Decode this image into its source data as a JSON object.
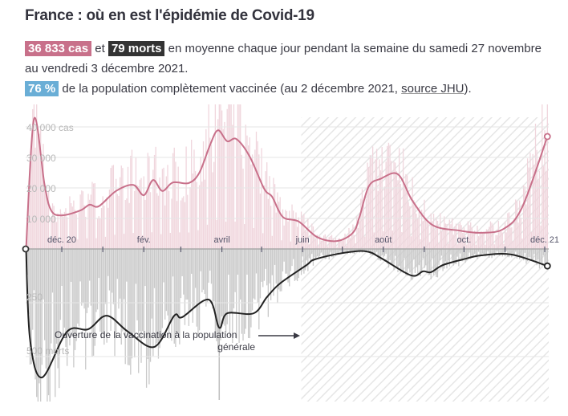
{
  "title": "France : où en est l'épidémie de Covid-19",
  "summary": {
    "cases_badge": "36 833 cas",
    "and": "et",
    "deaths_badge": "79 morts",
    "text1": "en moyenne chaque jour pendant la semaine du samedi 27 novembre au vendredi 3 décembre 2021.",
    "vax_badge": "76 %",
    "text2": "de la population complètement vaccinée (au 2 décembre 2021,",
    "source_link": "source JHU",
    "text3": ")."
  },
  "colors": {
    "cases": "#c8708a",
    "cases_bars": "#f0d6dd",
    "deaths": "#222222",
    "deaths_bars": "#c9c9c9",
    "vax": "#6aaed6"
  },
  "chart_data": {
    "type": "area",
    "x_range": [
      "2020-11-04",
      "2021-12-06"
    ],
    "x_ticks": [
      {
        "date": "2020-12-01",
        "label": "déc. 20"
      },
      {
        "date": "2021-01-01",
        "label": ""
      },
      {
        "date": "2021-02-01",
        "label": "fév."
      },
      {
        "date": "2021-03-01",
        "label": ""
      },
      {
        "date": "2021-04-01",
        "label": "avril"
      },
      {
        "date": "2021-05-01",
        "label": ""
      },
      {
        "date": "2021-06-01",
        "label": "juin"
      },
      {
        "date": "2021-07-01",
        "label": ""
      },
      {
        "date": "2021-08-01",
        "label": "août"
      },
      {
        "date": "2021-09-01",
        "label": ""
      },
      {
        "date": "2021-10-01",
        "label": "oct."
      },
      {
        "date": "2021-11-01",
        "label": ""
      },
      {
        "date": "2021-12-01",
        "label": "déc. 21"
      }
    ],
    "cases_axis": {
      "ylim": [
        0,
        45000
      ],
      "ticks": [
        {
          "v": 10000,
          "label": "10 000"
        },
        {
          "v": 20000,
          "label": "20 000"
        },
        {
          "v": 30000,
          "label": "30 000"
        },
        {
          "v": 40000,
          "label": "40 000 cas"
        }
      ],
      "grid": true
    },
    "deaths_axis": {
      "ylim": [
        0,
        700
      ],
      "direction": "down",
      "ticks": [
        {
          "v": 250,
          "label": "250"
        },
        {
          "v": 500,
          "label": "500 morts"
        }
      ],
      "grid": true
    },
    "cases_7day_avg": [
      [
        "2020-11-04",
        0
      ],
      [
        "2020-11-10",
        42600
      ],
      [
        "2020-11-18",
        21000
      ],
      [
        "2020-11-23",
        12600
      ],
      [
        "2020-12-01",
        11000
      ],
      [
        "2020-12-15",
        12600
      ],
      [
        "2020-12-22",
        14500
      ],
      [
        "2020-12-29",
        14000
      ],
      [
        "2021-01-11",
        19000
      ],
      [
        "2021-01-24",
        21000
      ],
      [
        "2021-02-01",
        17600
      ],
      [
        "2021-02-08",
        22600
      ],
      [
        "2021-02-15",
        19000
      ],
      [
        "2021-02-23",
        21800
      ],
      [
        "2021-03-07",
        21600
      ],
      [
        "2021-03-15",
        25000
      ],
      [
        "2021-03-23",
        34000
      ],
      [
        "2021-03-29",
        38900
      ],
      [
        "2021-04-05",
        35300
      ],
      [
        "2021-04-12",
        36000
      ],
      [
        "2021-04-22",
        30300
      ],
      [
        "2021-05-03",
        19700
      ],
      [
        "2021-05-09",
        17100
      ],
      [
        "2021-05-17",
        10500
      ],
      [
        "2021-05-29",
        9000
      ],
      [
        "2021-06-12",
        3900
      ],
      [
        "2021-06-27",
        2600
      ],
      [
        "2021-07-09",
        5300
      ],
      [
        "2021-07-14",
        10500
      ],
      [
        "2021-07-21",
        20500
      ],
      [
        "2021-07-30",
        23000
      ],
      [
        "2021-08-12",
        24500
      ],
      [
        "2021-08-23",
        15800
      ],
      [
        "2021-09-07",
        7900
      ],
      [
        "2021-09-28",
        6000
      ],
      [
        "2021-10-14",
        5300
      ],
      [
        "2021-10-31",
        6600
      ],
      [
        "2021-11-14",
        13700
      ],
      [
        "2021-12-03",
        36833
      ]
    ],
    "deaths_7day_avg": [
      [
        "2020-11-04",
        0
      ],
      [
        "2020-11-07",
        420
      ],
      [
        "2020-11-16",
        597
      ],
      [
        "2020-12-05",
        384
      ],
      [
        "2020-12-21",
        373
      ],
      [
        "2021-01-04",
        310
      ],
      [
        "2021-01-20",
        384
      ],
      [
        "2021-02-09",
        455
      ],
      [
        "2021-02-24",
        310
      ],
      [
        "2021-03-02",
        317
      ],
      [
        "2021-03-22",
        235
      ],
      [
        "2021-03-30",
        366
      ],
      [
        "2021-04-05",
        299
      ],
      [
        "2021-04-25",
        299
      ],
      [
        "2021-05-05",
        224
      ],
      [
        "2021-05-15",
        160
      ],
      [
        "2021-06-04",
        75
      ],
      [
        "2021-06-10",
        49
      ],
      [
        "2021-07-01",
        19
      ],
      [
        "2021-07-19",
        11
      ],
      [
        "2021-07-31",
        45
      ],
      [
        "2021-08-22",
        123
      ],
      [
        "2021-08-31",
        104
      ],
      [
        "2021-09-06",
        108
      ],
      [
        "2021-09-15",
        75
      ],
      [
        "2021-09-30",
        49
      ],
      [
        "2021-10-14",
        30
      ],
      [
        "2021-11-06",
        26
      ],
      [
        "2021-12-03",
        79
      ]
    ],
    "vaccination_period_start": "2021-05-31",
    "annotation": {
      "line1": "Ouverture de la vaccination à la population",
      "line2": "générale"
    }
  }
}
